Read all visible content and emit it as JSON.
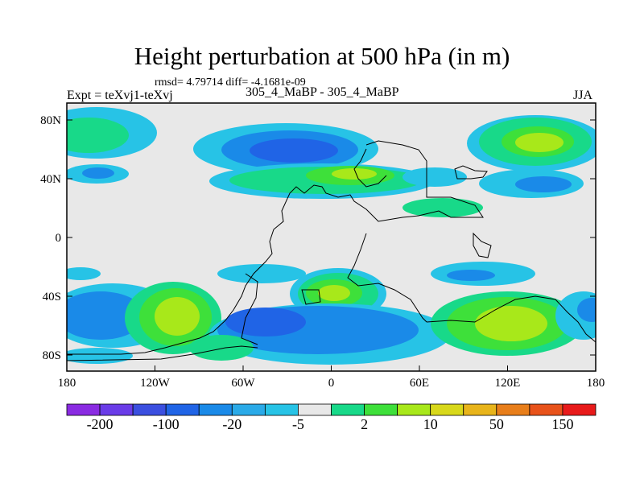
{
  "map": {
    "title": "Height perturbation at 500 hPa (in m)",
    "stats_line": "rmsd= 4.79714  diff= -4.1681e-09",
    "expt_label": "Expt = teXvj1-teXvj",
    "runs_label": "305_4_MaBP - 305_4_MaBP",
    "season_label": "JJA",
    "lat_ticks": [
      "80N",
      "40N",
      "0",
      "40S",
      "80S"
    ],
    "lon_ticks": [
      "180",
      "120W",
      "60W",
      "0",
      "60E",
      "120E",
      "180"
    ]
  },
  "colorbar": {
    "colors": [
      "#8a2be2",
      "#6a3ce8",
      "#3b4fe0",
      "#2064e6",
      "#1a8ae8",
      "#2aaae8",
      "#27c3e6",
      "#e8e8e8",
      "#18d989",
      "#3ee03a",
      "#a8e81a",
      "#d8d81a",
      "#e8b41a",
      "#e87e1a",
      "#e8521a",
      "#e81a1a"
    ],
    "labels": [
      "-200",
      "-100",
      "-20",
      "-5",
      "2",
      "10",
      "50",
      "150"
    ]
  },
  "legend_colors": {
    "neutral": "#e8e8e8",
    "light_blue": "#27c3e6",
    "blue": "#1a8ae8",
    "dark_blue": "#2064e6",
    "teal_green": "#18d989",
    "green": "#3ee03a",
    "yellow_green": "#a8e81a"
  }
}
